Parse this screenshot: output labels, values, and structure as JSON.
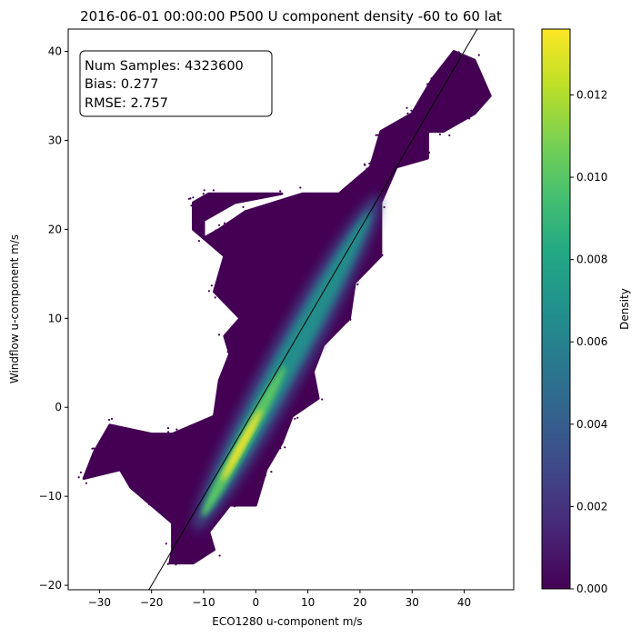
{
  "chart_data": {
    "type": "scatter",
    "title": "2016-06-01 00:00:00 P500 U component density -60 to 60 lat",
    "xlabel": "ECO1280 u-component m/s",
    "ylabel": "Windflow u-component m/s",
    "xlim": [
      -36,
      49.5
    ],
    "ylim": [
      -20.5,
      42.5
    ],
    "x_ticks": [
      -30,
      -20,
      -10,
      0,
      10,
      20,
      30,
      40
    ],
    "y_ticks": [
      -20,
      -10,
      0,
      10,
      20,
      30,
      40
    ],
    "reference_line": "y = x",
    "annotation": {
      "lines": [
        "Num Samples: 4323600",
        "Bias: 0.277",
        "RMSE: 2.757"
      ]
    },
    "colorbar": {
      "label": "Density",
      "colormap": "viridis",
      "range": [
        0.0,
        0.0136
      ],
      "ticks": [
        "0.000",
        "0.002",
        "0.004",
        "0.006",
        "0.008",
        "0.010",
        "0.012"
      ]
    },
    "point_cloud_outline": [
      [
        -16.5,
        -17.5
      ],
      [
        -12,
        -17.5
      ],
      [
        -8,
        -16
      ],
      [
        -9,
        -14
      ],
      [
        -5,
        -11
      ],
      [
        0,
        -11
      ],
      [
        2,
        -7
      ],
      [
        5,
        -4
      ],
      [
        7,
        -1
      ],
      [
        12,
        1
      ],
      [
        11,
        4
      ],
      [
        13,
        7
      ],
      [
        18,
        10
      ],
      [
        19,
        14
      ],
      [
        24,
        17
      ],
      [
        24,
        23
      ],
      [
        27,
        27
      ],
      [
        33,
        28
      ],
      [
        33,
        31
      ],
      [
        36,
        31
      ],
      [
        42,
        33
      ],
      [
        45,
        35
      ],
      [
        42,
        39
      ],
      [
        38,
        40
      ],
      [
        34,
        37
      ],
      [
        30,
        33
      ],
      [
        24,
        31
      ],
      [
        22,
        27
      ],
      [
        16,
        24
      ],
      [
        9,
        24
      ],
      [
        -2,
        22
      ],
      [
        -7,
        20
      ],
      [
        -10,
        19
      ],
      [
        -10,
        21
      ],
      [
        -4,
        23
      ],
      [
        5,
        24
      ],
      [
        -9,
        24
      ],
      [
        -12,
        23
      ],
      [
        -12,
        20
      ],
      [
        -6,
        17
      ],
      [
        -8,
        13
      ],
      [
        -3,
        10
      ],
      [
        -6,
        8
      ],
      [
        -5,
        6
      ],
      [
        -7,
        3
      ],
      [
        -8,
        -1
      ],
      [
        -16,
        -3
      ],
      [
        -20,
        -3
      ],
      [
        -28,
        -2
      ],
      [
        -31,
        -5
      ],
      [
        -33,
        -8
      ],
      [
        -26,
        -7
      ],
      [
        -24,
        -9
      ],
      [
        -20,
        -11
      ],
      [
        -16,
        -13
      ],
      [
        -16,
        -16
      ]
    ],
    "density_core": {
      "start": [
        -10,
        -12
      ],
      "end": [
        22,
        22
      ],
      "peak": [
        -3,
        -3
      ]
    },
    "colors": {
      "background_low": "#440154",
      "mid": "#21918c",
      "high": "#fde725",
      "reference_line": "#000000"
    }
  }
}
